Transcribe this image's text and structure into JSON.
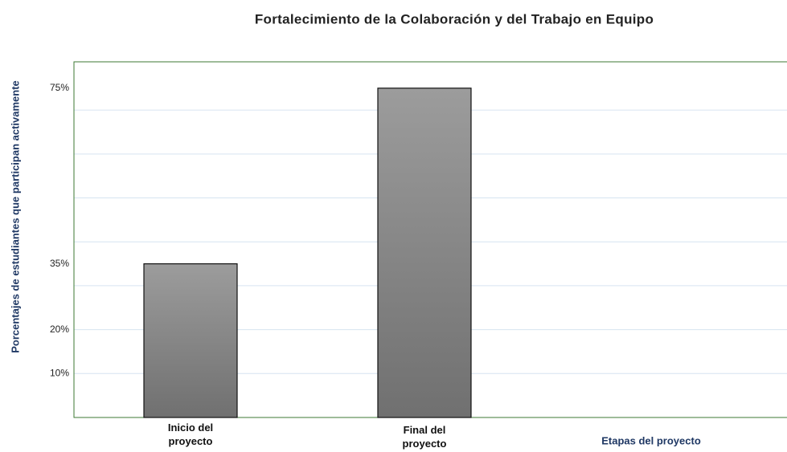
{
  "chart_data": {
    "type": "bar",
    "title": "Fortalecimiento de la Colaboración y del Trabajo en Equipo",
    "y_label": "Porcentajes de estudiantes que participan activamente",
    "x_label": "Etapas del proyecto",
    "categories": [
      "Inicio del proyecto",
      "Final del proyecto"
    ],
    "values": [
      35,
      75
    ],
    "color": "#8a8a8a",
    "ylim": [
      0,
      81
    ],
    "yticks": [
      {
        "value": 10,
        "label": "10%"
      },
      {
        "value": 20,
        "label": "20%"
      },
      {
        "value": 35,
        "label": "35%"
      },
      {
        "value": 75,
        "label": "75%"
      }
    ],
    "ygrid": [
      10,
      20,
      30,
      40,
      50,
      60,
      70
    ],
    "grid": true
  }
}
